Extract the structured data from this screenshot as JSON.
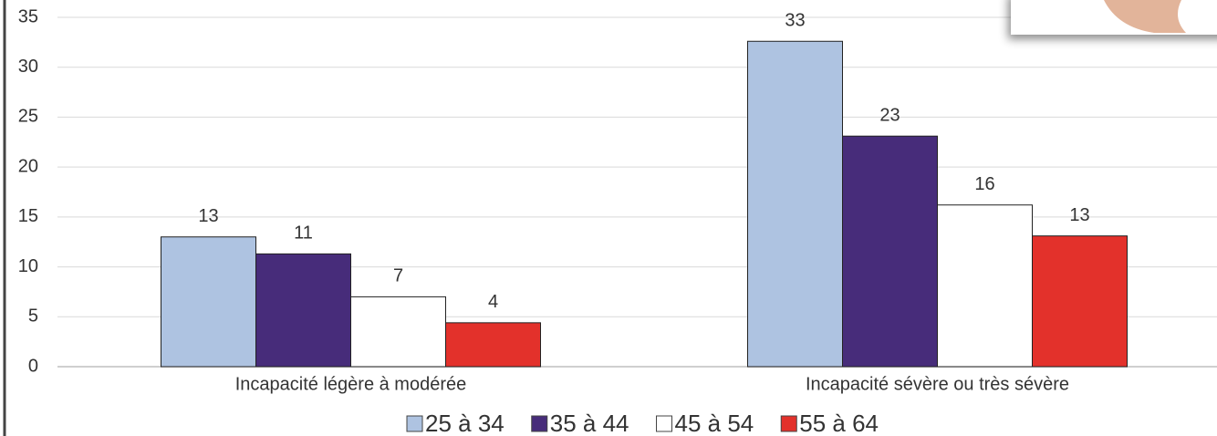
{
  "chart_data": {
    "type": "bar",
    "categories": [
      "Incapacité légère à modérée",
      "Incapacité sévère ou très sévère"
    ],
    "series": [
      {
        "name": "25 à 34",
        "color": "#aec3e1",
        "values": [
          13.0,
          32.6
        ],
        "value_labels": [
          "13",
          "33"
        ]
      },
      {
        "name": "35 à 44",
        "color": "#472c7a",
        "values": [
          11.3,
          23.1
        ],
        "value_labels": [
          "11",
          "23"
        ]
      },
      {
        "name": "45 à 54",
        "color": "#ffffff",
        "values": [
          7.0,
          16.2
        ],
        "value_labels": [
          "7",
          "16"
        ]
      },
      {
        "name": "55 à 64",
        "color": "#e3312b",
        "values": [
          4.4,
          13.1
        ],
        "value_labels": [
          "4",
          "13"
        ]
      }
    ],
    "ylim": [
      0,
      35
    ],
    "yticks": [
      0,
      5,
      10,
      15,
      20,
      25,
      30,
      35
    ],
    "grid": true,
    "legend": "bottom"
  }
}
